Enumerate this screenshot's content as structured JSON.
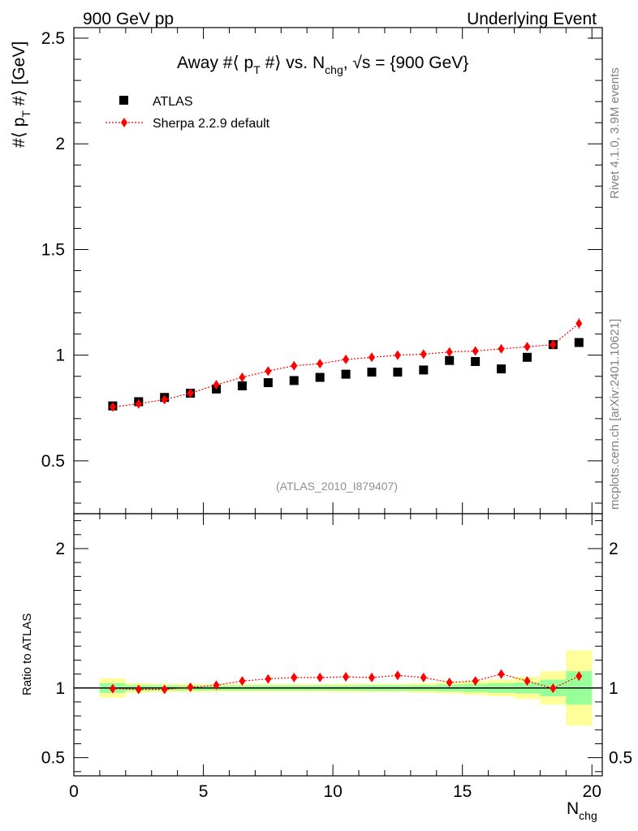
{
  "header": {
    "left": "900 GeV pp",
    "right": "Underlying Event"
  },
  "side_text": {
    "rivet": "Rivet 4.1.0,  3.9M events",
    "mcplots": "mcplots.cern.ch [arXiv:2401.10621]"
  },
  "chart_data": {
    "type": "scatter",
    "title_main": "Away #⟨ p",
    "title_sub_T": "T",
    "title_mid": " #⟩ vs. N",
    "title_sub_chg": "chg",
    "title_end": ", √s = {900 GeV}",
    "analysis_id": "(ATLAS_2010_I879407)",
    "ylabel_main": "#⟨ p",
    "ylabel_sub": "T",
    "ylabel_end": " #⟩ [GeV]",
    "ratio_ylabel": "Ratio to ATLAS",
    "xlabel_main": "N",
    "xlabel_sub": "chg",
    "xlim": [
      0,
      20.4
    ],
    "ylim": [
      0.25,
      2.55
    ],
    "ratio_ylim": [
      0.37,
      2.25
    ],
    "x_ticks": [
      "0",
      "5",
      "10",
      "15",
      "20"
    ],
    "y_ticks": [
      "0.5",
      "1",
      "1.5",
      "2",
      "2.5"
    ],
    "ratio_y_ticks": [
      "0.5",
      "1",
      "2"
    ],
    "legend": [
      "ATLAS",
      "Sherpa 2.2.9 default"
    ],
    "x": [
      1.5,
      2.5,
      3.5,
      4.5,
      5.5,
      6.5,
      7.5,
      8.5,
      9.5,
      10.5,
      11.5,
      12.5,
      13.5,
      14.5,
      15.5,
      16.5,
      17.5,
      18.5,
      19.5
    ],
    "series": [
      {
        "name": "ATLAS",
        "values": [
          0.76,
          0.78,
          0.8,
          0.82,
          0.84,
          0.855,
          0.87,
          0.88,
          0.895,
          0.91,
          0.92,
          0.92,
          0.93,
          0.975,
          0.97,
          0.935,
          0.99,
          1.05,
          1.06
        ],
        "stat_band": [
          0.035,
          0.02,
          0.018,
          0.018,
          0.018,
          0.018,
          0.018,
          0.018,
          0.018,
          0.018,
          0.02,
          0.02,
          0.02,
          0.025,
          0.03,
          0.035,
          0.04,
          0.06,
          0.12
        ],
        "total_band": [
          0.07,
          0.035,
          0.03,
          0.03,
          0.028,
          0.028,
          0.028,
          0.028,
          0.028,
          0.03,
          0.03,
          0.03,
          0.035,
          0.04,
          0.05,
          0.06,
          0.08,
          0.12,
          0.27
        ]
      },
      {
        "name": "Sherpa 2.2.9 default",
        "values": [
          0.755,
          0.77,
          0.79,
          0.82,
          0.86,
          0.895,
          0.925,
          0.95,
          0.96,
          0.98,
          0.99,
          1.0,
          1.005,
          1.015,
          1.02,
          1.03,
          1.04,
          1.05,
          1.15
        ],
        "errors": [
          0.012,
          0.01,
          0.01,
          0.01,
          0.01,
          0.01,
          0.01,
          0.01,
          0.01,
          0.01,
          0.01,
          0.01,
          0.01,
          0.01,
          0.01,
          0.01,
          0.012,
          0.015,
          0.025
        ],
        "ratio": [
          0.995,
          0.99,
          0.99,
          1.005,
          1.02,
          1.05,
          1.065,
          1.075,
          1.075,
          1.08,
          1.075,
          1.09,
          1.075,
          1.04,
          1.05,
          1.1,
          1.05,
          0.998,
          1.085
        ]
      }
    ]
  }
}
